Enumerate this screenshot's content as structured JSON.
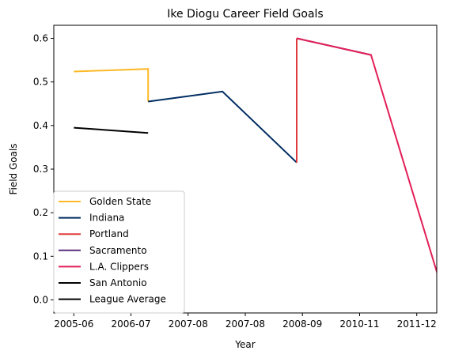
{
  "chart_data": {
    "type": "line",
    "title": "Ike Diogu Career Field Goals",
    "xlabel": "Year",
    "ylabel": "Field Goals",
    "x_ticks": [
      "2005-06",
      "2006-07",
      "2007-08",
      "2007-08",
      "2008-09",
      "2010-11",
      "2011-12"
    ],
    "y_ticks": [
      "0.0",
      "0.1",
      "0.2",
      "0.3",
      "0.4",
      "0.5",
      "0.6"
    ],
    "xlim": [
      -0.35,
      6.35
    ],
    "ylim": [
      -0.03,
      0.63
    ],
    "grid": false,
    "legend_position": "lower-left",
    "series": [
      {
        "name": "Golden State",
        "color": "#FDB927",
        "points": [
          [
            0,
            0.524
          ],
          [
            1.3,
            0.53
          ],
          [
            1.3,
            0.455
          ]
        ]
      },
      {
        "name": "Indiana",
        "color": "#002D62",
        "points": [
          [
            1.3,
            0.455
          ],
          [
            2.6,
            0.478
          ],
          [
            3.9,
            0.315
          ]
        ]
      },
      {
        "name": "Portland",
        "color": "#E03A3E",
        "points": [
          [
            3.9,
            0.315
          ],
          [
            3.9,
            0.6
          ]
        ]
      },
      {
        "name": "Sacramento",
        "color": "#5A2D81",
        "points": [
          [
            3.9,
            0.6
          ],
          [
            5.2,
            0.562
          ]
        ]
      },
      {
        "name": "L.A. Clippers",
        "color": "#E31F57",
        "points": [
          [
            3.9,
            0.6
          ],
          [
            5.2,
            0.562
          ],
          [
            6.5,
            0.0
          ]
        ]
      },
      {
        "name": "San Antonio",
        "color": "#000000",
        "points": []
      },
      {
        "name": "League Average",
        "color": "#000000",
        "points": [
          [
            0,
            0.395
          ],
          [
            1.3,
            0.383
          ]
        ]
      }
    ]
  }
}
